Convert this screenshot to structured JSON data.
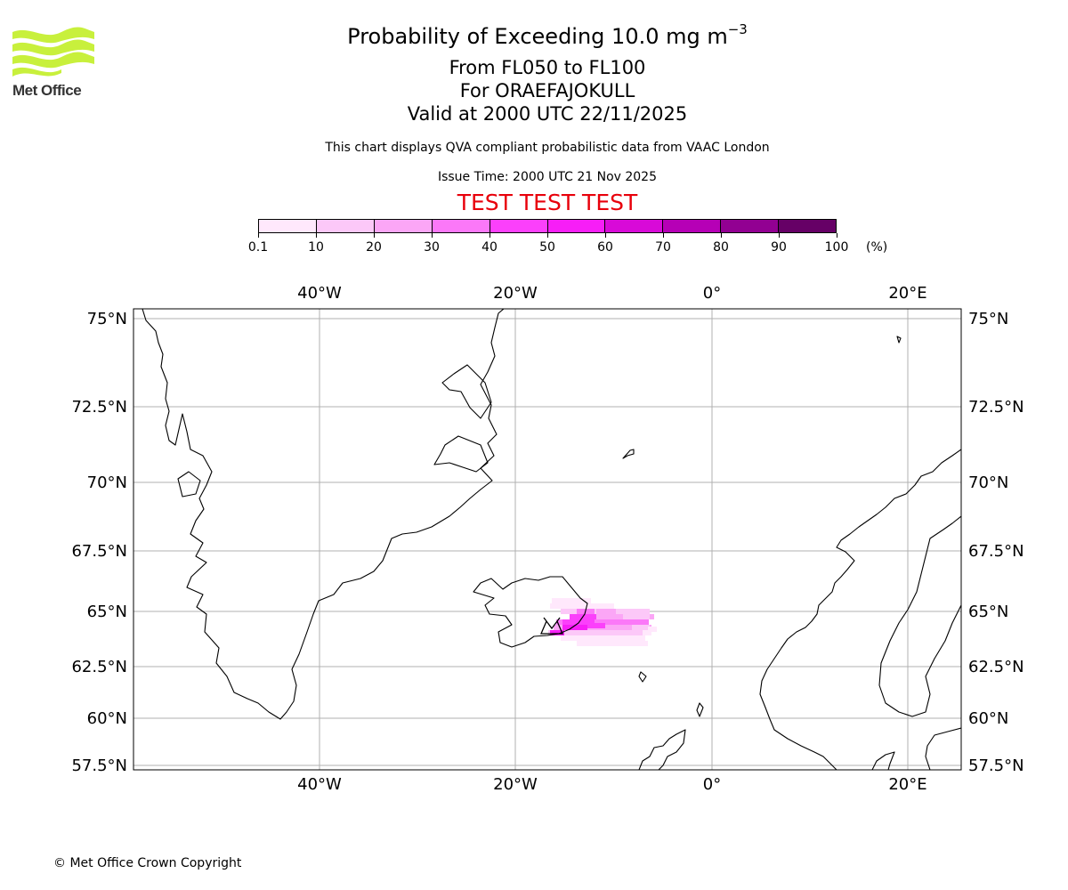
{
  "header": {
    "title_prefix": "Probability of Exceeding 10.0 mg m",
    "title_exponent": "−3",
    "flight_levels": "From FL050 to FL100",
    "volcano": "For ORAEFAJOKULL",
    "valid_time": "Valid at 2000 UTC 22/11/2025",
    "disclaimer": "This chart displays QVA compliant probabilistic data from VAAC London",
    "issue_time": "Issue Time: 2000 UTC 21 Nov 2025",
    "test_banner": "TEST TEST TEST"
  },
  "logo": {
    "text": "Met Office",
    "color": "#c8f03c"
  },
  "colorbar": {
    "ticks": [
      "0.1",
      "10",
      "20",
      "30",
      "40",
      "50",
      "60",
      "70",
      "80",
      "90",
      "100"
    ],
    "unit": "(%)",
    "colors": [
      "#ffe8fc",
      "#fcc8f8",
      "#fba6f6",
      "#fb78f8",
      "#fb40fb",
      "#f71ef7",
      "#d80ad8",
      "#b600b6",
      "#920092",
      "#660066"
    ]
  },
  "map": {
    "lon_labels": [
      "40°W",
      "20°W",
      "0°",
      "20°E"
    ],
    "lat_labels": [
      "75°N",
      "72.5°N",
      "70°N",
      "67.5°N",
      "65°N",
      "62.5°N",
      "60°N",
      "57.5°N"
    ],
    "source_volcano": "ORAEFAJOKULL"
  },
  "footer": {
    "copyright": "© Met Office Crown Copyright"
  }
}
